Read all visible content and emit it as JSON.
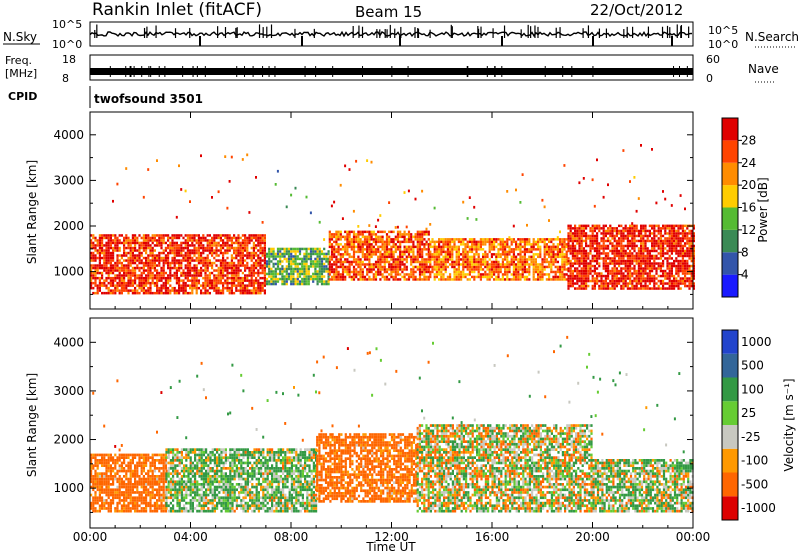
{
  "header": {
    "station": "Rankin Inlet (fitACF)",
    "beam": "Beam 15",
    "date": "22/Oct/2012"
  },
  "nsky_panel": {
    "left_label": "N.Sky",
    "right_label": "N.Search",
    "left_ticks": [
      "10^5",
      "10^0"
    ],
    "right_ticks": [
      "10^5",
      "10^0"
    ]
  },
  "freq_panel": {
    "left_label_1": "Freq.",
    "left_label_2": "[MHz]",
    "right_label": "Nave",
    "left_ticks": [
      "18",
      "8"
    ],
    "right_ticks": [
      "60",
      "0"
    ]
  },
  "cpid_panel": {
    "label": "CPID",
    "mode": "twofsound 3501"
  },
  "power_panel": {
    "ylabel": "Slant Range [km]",
    "yticks": [
      "1000",
      "2000",
      "3000",
      "4000"
    ],
    "colorbar_label": "Power [dB]",
    "colorbar_ticks": [
      "4",
      "8",
      "12",
      "16",
      "20",
      "24",
      "28"
    ],
    "colors": [
      "#1a1aff",
      "#3355aa",
      "#3a8a55",
      "#55bb33",
      "#ffcc00",
      "#ff8c00",
      "#ff4400",
      "#e00000"
    ]
  },
  "velocity_panel": {
    "ylabel": "Slant Range [km]",
    "yticks": [
      "1000",
      "2000",
      "3000",
      "4000"
    ],
    "colorbar_label": "Velocity [m s⁻¹]",
    "colorbar_ticks": [
      "1000",
      "500",
      "100",
      "25",
      "-25",
      "-100",
      "-500",
      "-1000"
    ],
    "colors": [
      "#2244cc",
      "#336699",
      "#339944",
      "#66cc33",
      "#c8c8c0",
      "#ff9900",
      "#ff6600",
      "#dd0000"
    ]
  },
  "xaxis": {
    "label": "Time UT",
    "ticks": [
      "00:00",
      "04:00",
      "08:00",
      "12:00",
      "16:00",
      "20:00",
      "00:00"
    ]
  },
  "chart_data": {
    "type": "heatmap",
    "title": "Rankin Inlet (fitACF)",
    "subtitle": "Beam 15 22/Oct/2012",
    "xlabel": "Time UT",
    "ylabel": "Slant Range [km]",
    "x_range_hours": [
      0,
      24
    ],
    "y_range_km": [
      180,
      4500
    ],
    "series": [
      {
        "name": "Power [dB]",
        "value_range": [
          0,
          30
        ],
        "bands": [
          {
            "t_start": 0,
            "t_end": 7,
            "r_low": 500,
            "r_high": 1800,
            "value": 26
          },
          {
            "t_start": 7,
            "t_end": 9.5,
            "r_low": 700,
            "r_high": 1500,
            "value": 12
          },
          {
            "t_start": 9.5,
            "t_end": 13.5,
            "r_low": 800,
            "r_high": 1900,
            "value": 24
          },
          {
            "t_start": 13.5,
            "t_end": 19,
            "r_low": 800,
            "r_high": 1700,
            "value": 22
          },
          {
            "t_start": 19,
            "t_end": 24,
            "r_low": 600,
            "r_high": 2000,
            "value": 27
          }
        ]
      },
      {
        "name": "Velocity [m s⁻¹]",
        "value_range": [
          -1000,
          1000
        ],
        "bands": [
          {
            "t_start": 0,
            "t_end": 3,
            "r_low": 500,
            "r_high": 1700,
            "value": -150
          },
          {
            "t_start": 3,
            "t_end": 9,
            "r_low": 500,
            "r_high": 1800,
            "value": 60
          },
          {
            "t_start": 9,
            "t_end": 13,
            "r_low": 700,
            "r_high": 2100,
            "value": -150
          },
          {
            "t_start": 13,
            "t_end": 20,
            "r_low": 500,
            "r_high": 2300,
            "value": 0
          },
          {
            "t_start": 20,
            "t_end": 24,
            "r_low": 500,
            "r_high": 1600,
            "value": 40
          }
        ]
      }
    ]
  }
}
